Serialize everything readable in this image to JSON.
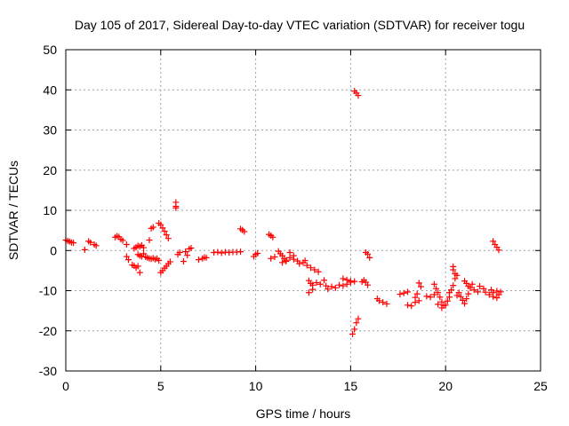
{
  "chart_data": {
    "type": "scatter",
    "title": "Day 105 of 2017, Sidereal Day-to-day VTEC variation (SDTVAR) for receiver togu",
    "xlabel": "GPS time / hours",
    "ylabel": "SDTVAR / TECUs",
    "xlim": [
      0,
      25
    ],
    "ylim": [
      -30,
      50
    ],
    "xticks": [
      0,
      5,
      10,
      15,
      20,
      25
    ],
    "yticks": [
      -30,
      -20,
      -10,
      0,
      10,
      20,
      30,
      40,
      50
    ],
    "grid": true,
    "marker": "+",
    "marker_color": "#ff0000",
    "series": [
      {
        "name": "SDTVAR",
        "points": [
          [
            0.0,
            2.6
          ],
          [
            0.1,
            2.4
          ],
          [
            0.2,
            2.2
          ],
          [
            0.3,
            2.0
          ],
          [
            0.4,
            1.9
          ],
          [
            1.0,
            0.2
          ],
          [
            1.2,
            2.3
          ],
          [
            1.3,
            2.0
          ],
          [
            1.5,
            1.5
          ],
          [
            1.6,
            1.2
          ],
          [
            2.6,
            3.3
          ],
          [
            2.7,
            3.6
          ],
          [
            2.8,
            3.4
          ],
          [
            2.9,
            2.8
          ],
          [
            3.0,
            2.5
          ],
          [
            3.2,
            1.5
          ],
          [
            3.2,
            -1.5
          ],
          [
            3.3,
            -2.3
          ],
          [
            3.5,
            -3.6
          ],
          [
            3.6,
            -3.8
          ],
          [
            3.7,
            -4.3
          ],
          [
            3.8,
            -3.9
          ],
          [
            3.9,
            -5.5
          ],
          [
            3.6,
            0.5
          ],
          [
            3.7,
            0.8
          ],
          [
            3.8,
            1.2
          ],
          [
            3.9,
            1.0
          ],
          [
            4.0,
            1.3
          ],
          [
            4.1,
            0.7
          ],
          [
            3.8,
            -1.0
          ],
          [
            3.9,
            -1.3
          ],
          [
            4.0,
            -1.5
          ],
          [
            4.1,
            -0.8
          ],
          [
            4.2,
            -1.6
          ],
          [
            4.3,
            -1.8
          ],
          [
            4.4,
            -2.0
          ],
          [
            4.5,
            -2.1
          ],
          [
            4.6,
            -1.9
          ],
          [
            4.7,
            -2.2
          ],
          [
            4.8,
            -2.0
          ],
          [
            4.9,
            -2.5
          ],
          [
            4.4,
            2.6
          ],
          [
            4.5,
            5.5
          ],
          [
            4.6,
            5.8
          ],
          [
            4.9,
            6.8
          ],
          [
            5.0,
            6.4
          ],
          [
            5.1,
            5.6
          ],
          [
            5.2,
            4.8
          ],
          [
            5.3,
            3.9
          ],
          [
            5.4,
            3.0
          ],
          [
            5.0,
            -5.5
          ],
          [
            5.1,
            -5.0
          ],
          [
            5.2,
            -4.4
          ],
          [
            5.3,
            -3.9
          ],
          [
            5.4,
            -3.3
          ],
          [
            5.5,
            -2.8
          ],
          [
            5.8,
            12.0
          ],
          [
            5.8,
            11.0
          ],
          [
            5.8,
            10.6
          ],
          [
            5.9,
            -1.0
          ],
          [
            6.0,
            -0.5
          ],
          [
            6.2,
            -2.7
          ],
          [
            6.4,
            -1.2
          ],
          [
            6.3,
            -0.3
          ],
          [
            6.5,
            0.4
          ],
          [
            6.6,
            0.6
          ],
          [
            7.0,
            -2.3
          ],
          [
            7.2,
            -2.0
          ],
          [
            7.3,
            -1.7
          ],
          [
            7.4,
            -1.8
          ],
          [
            7.8,
            -0.5
          ],
          [
            8.0,
            -0.4
          ],
          [
            8.2,
            -0.6
          ],
          [
            8.4,
            -0.4
          ],
          [
            8.6,
            -0.5
          ],
          [
            8.8,
            -0.4
          ],
          [
            9.0,
            -0.4
          ],
          [
            9.2,
            -0.3
          ],
          [
            9.2,
            5.4
          ],
          [
            9.3,
            5.1
          ],
          [
            9.4,
            4.7
          ],
          [
            9.9,
            -1.5
          ],
          [
            10.0,
            -1.0
          ],
          [
            10.1,
            -0.7
          ],
          [
            10.7,
            4.0
          ],
          [
            10.8,
            3.7
          ],
          [
            10.9,
            3.3
          ],
          [
            10.8,
            -2.0
          ],
          [
            11.0,
            -1.6
          ],
          [
            11.2,
            -0.2
          ],
          [
            11.3,
            -0.8
          ],
          [
            11.4,
            -1.3
          ],
          [
            11.5,
            -2.0
          ],
          [
            11.6,
            -2.7
          ],
          [
            11.4,
            -3.0
          ],
          [
            11.6,
            -2.4
          ],
          [
            11.8,
            -1.8
          ],
          [
            12.0,
            -2.2
          ],
          [
            11.8,
            -0.5
          ],
          [
            12.0,
            -1.3
          ],
          [
            12.2,
            -2.6
          ],
          [
            12.3,
            -3.3
          ],
          [
            12.5,
            -3.0
          ],
          [
            12.6,
            -2.5
          ],
          [
            12.7,
            -3.7
          ],
          [
            12.9,
            -4.3
          ],
          [
            13.1,
            -4.8
          ],
          [
            13.3,
            -5.3
          ],
          [
            12.8,
            -7.5
          ],
          [
            12.9,
            -8.2
          ],
          [
            13.0,
            -8.6
          ],
          [
            13.2,
            -8.0
          ],
          [
            13.4,
            -8.4
          ],
          [
            12.8,
            -10.5
          ],
          [
            13.0,
            -9.7
          ],
          [
            13.6,
            -7.4
          ],
          [
            13.7,
            -8.8
          ],
          [
            13.8,
            -9.6
          ],
          [
            14.0,
            -9.0
          ],
          [
            14.2,
            -9.3
          ],
          [
            14.4,
            -8.6
          ],
          [
            14.6,
            -8.8
          ],
          [
            14.8,
            -8.4
          ],
          [
            15.0,
            -7.9
          ],
          [
            14.6,
            -7.0
          ],
          [
            14.8,
            -7.3
          ],
          [
            15.0,
            -7.6
          ],
          [
            15.2,
            -7.7
          ],
          [
            15.2,
            39.7
          ],
          [
            15.3,
            39.2
          ],
          [
            15.4,
            38.6
          ],
          [
            15.1,
            -20.8
          ],
          [
            15.2,
            -19.6
          ],
          [
            15.3,
            -18.0
          ],
          [
            15.4,
            -17.0
          ],
          [
            15.6,
            -7.8
          ],
          [
            15.7,
            -7.4
          ],
          [
            15.8,
            -7.9
          ],
          [
            15.9,
            -8.6
          ],
          [
            15.8,
            -0.5
          ],
          [
            15.9,
            -0.9
          ],
          [
            16.0,
            -1.8
          ],
          [
            16.4,
            -12.0
          ],
          [
            16.5,
            -12.5
          ],
          [
            16.7,
            -12.9
          ],
          [
            16.9,
            -13.3
          ],
          [
            17.6,
            -10.9
          ],
          [
            17.8,
            -10.6
          ],
          [
            18.0,
            -10.3
          ],
          [
            18.0,
            -13.6
          ],
          [
            18.2,
            -13.8
          ],
          [
            18.4,
            -12.9
          ],
          [
            18.6,
            -12.5
          ],
          [
            18.4,
            -11.7
          ],
          [
            18.5,
            -10.8
          ],
          [
            18.6,
            -8.1
          ],
          [
            18.7,
            -9.0
          ],
          [
            19.0,
            -11.4
          ],
          [
            19.2,
            -11.6
          ],
          [
            19.4,
            -11.0
          ],
          [
            19.4,
            -8.4
          ],
          [
            19.5,
            -9.5
          ],
          [
            19.6,
            -10.5
          ],
          [
            19.7,
            -11.6
          ],
          [
            19.8,
            -12.8
          ],
          [
            19.9,
            -13.7
          ],
          [
            19.6,
            -13.4
          ],
          [
            19.8,
            -14.3
          ],
          [
            20.0,
            -13.6
          ],
          [
            20.1,
            -12.6
          ],
          [
            20.2,
            -10.5
          ],
          [
            20.2,
            -11.6
          ],
          [
            20.3,
            -9.8
          ],
          [
            20.4,
            -8.7
          ],
          [
            20.4,
            -4.0
          ],
          [
            20.4,
            -4.8
          ],
          [
            20.5,
            -5.8
          ],
          [
            20.5,
            -7.0
          ],
          [
            20.6,
            -6.2
          ],
          [
            20.6,
            -11.2
          ],
          [
            20.7,
            -10.5
          ],
          [
            20.8,
            -11.5
          ],
          [
            20.9,
            -12.4
          ],
          [
            21.0,
            -13.2
          ],
          [
            21.1,
            -12.0
          ],
          [
            21.2,
            -10.8
          ],
          [
            21.3,
            -9.3
          ],
          [
            21.4,
            -8.4
          ],
          [
            21.0,
            -7.6
          ],
          [
            21.1,
            -8.2
          ],
          [
            21.2,
            -8.9
          ],
          [
            21.5,
            -9.8
          ],
          [
            21.7,
            -10.3
          ],
          [
            21.8,
            -8.9
          ],
          [
            22.0,
            -9.5
          ],
          [
            22.1,
            -10.4
          ],
          [
            22.3,
            -11.0
          ],
          [
            22.5,
            -11.5
          ],
          [
            22.7,
            -11.8
          ],
          [
            22.8,
            -11.0
          ],
          [
            22.4,
            -9.8
          ],
          [
            22.5,
            -10.5
          ],
          [
            22.7,
            -10.1
          ],
          [
            22.9,
            -10.3
          ],
          [
            22.5,
            2.3
          ],
          [
            22.6,
            1.5
          ],
          [
            22.7,
            0.8
          ],
          [
            22.8,
            0.1
          ]
        ]
      }
    ]
  }
}
